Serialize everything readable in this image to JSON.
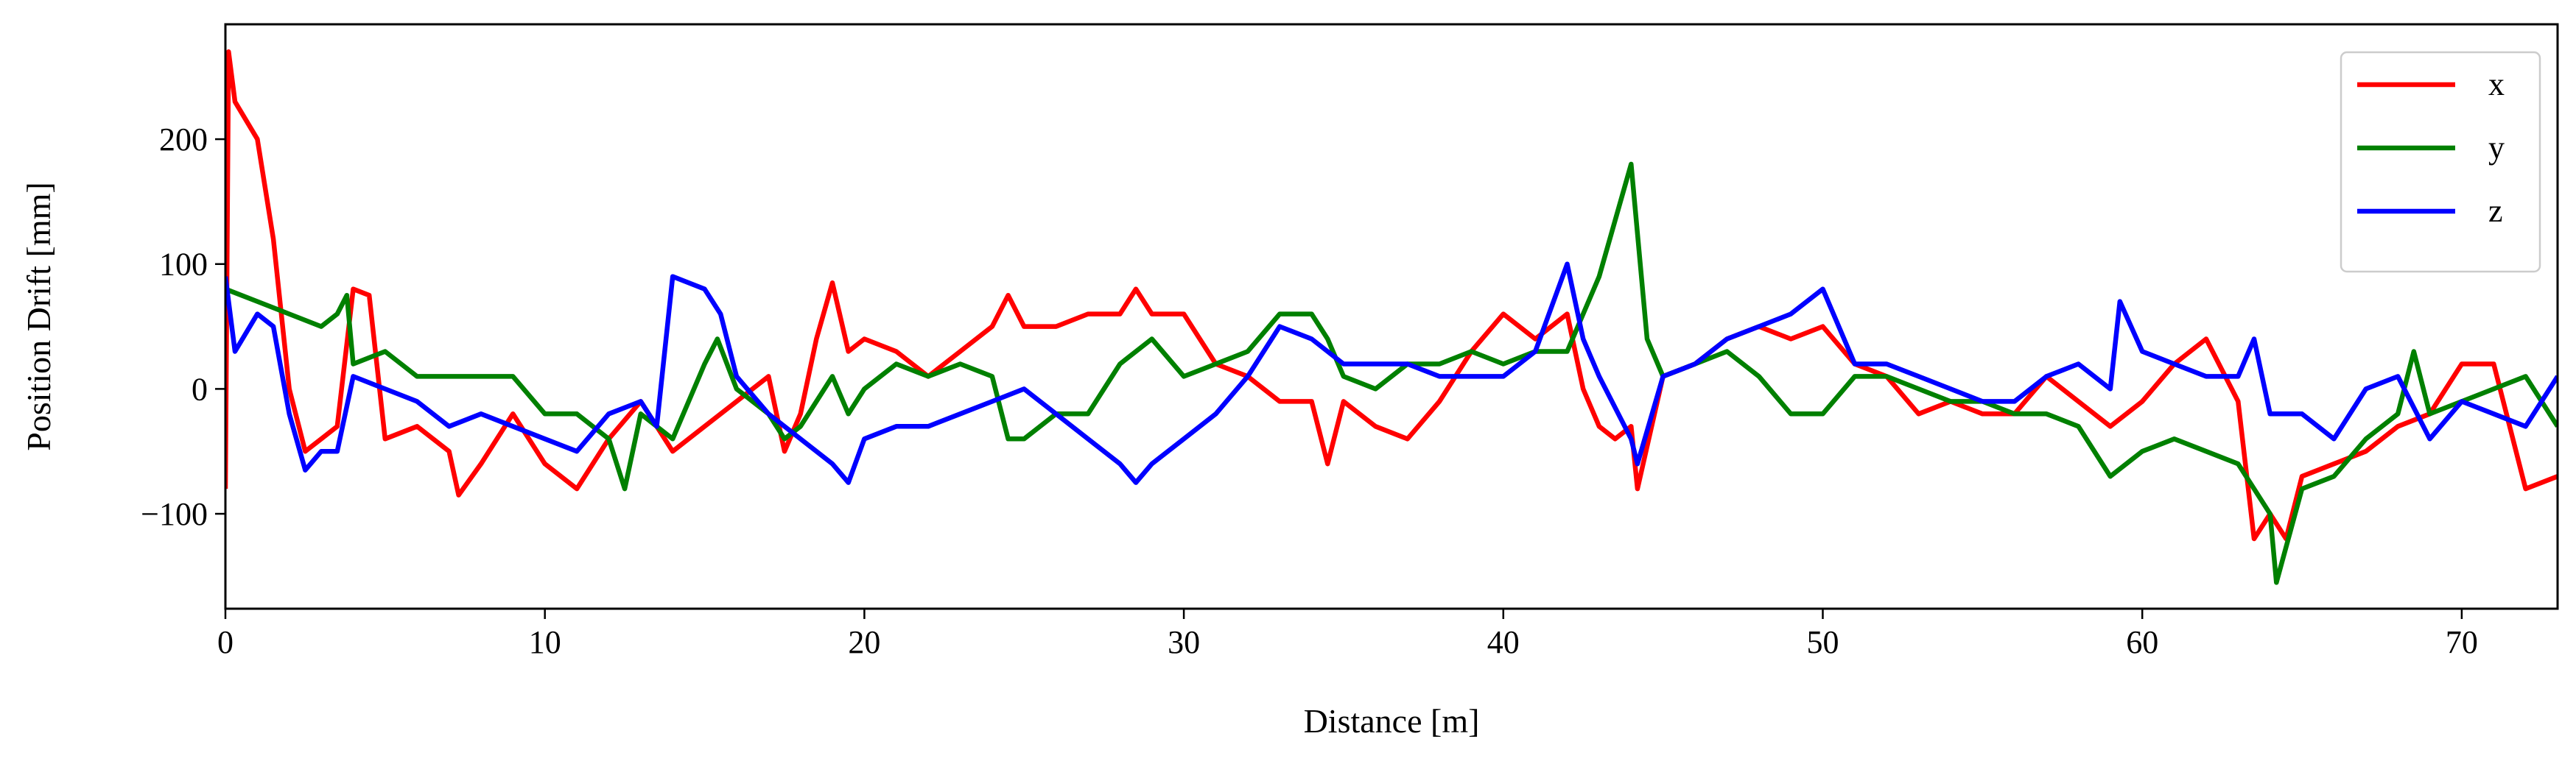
{
  "chart_data": {
    "type": "line",
    "x_label": "Distance [m]",
    "y_label": "Position Drift [mm]",
    "xlim": [
      0,
      73
    ],
    "ylim": [
      -176,
      292
    ],
    "xticks": [
      0,
      10,
      20,
      30,
      40,
      50,
      60,
      70
    ],
    "yticks": [
      {
        "value": -100,
        "label": "−100"
      },
      0,
      100,
      200
    ],
    "grid": false,
    "legend": "upper right",
    "series": [
      {
        "name": "x",
        "color": "#ff0000",
        "x": [
          0,
          0.1,
          0.3,
          1,
          1.5,
          2,
          2.5,
          3,
          3.5,
          4,
          4.5,
          5,
          6,
          7,
          7.3,
          8,
          9,
          10,
          11,
          12,
          13,
          14,
          15,
          16,
          17,
          17.5,
          18,
          18.5,
          19,
          19.5,
          20,
          21,
          22,
          23,
          24,
          24.5,
          25,
          26,
          27,
          28,
          28.5,
          29,
          30,
          31,
          32,
          33,
          34,
          34.5,
          35,
          36,
          37,
          38,
          39,
          40,
          41,
          42,
          42.5,
          43,
          43.5,
          44,
          44.2,
          45,
          46,
          47,
          48,
          49,
          50,
          51,
          52,
          53,
          54,
          55,
          56,
          57,
          58,
          59,
          60,
          61,
          62,
          63,
          63.5,
          64,
          64.5,
          65,
          66,
          67,
          68,
          69,
          70,
          71,
          72,
          73
        ],
        "values": [
          -80,
          270,
          230,
          200,
          120,
          0,
          -50,
          -40,
          -30,
          80,
          75,
          -40,
          -30,
          -50,
          -85,
          -60,
          -20,
          -60,
          -80,
          -40,
          -10,
          -50,
          -30,
          -10,
          10,
          -50,
          -20,
          40,
          85,
          30,
          40,
          30,
          10,
          30,
          50,
          75,
          50,
          50,
          60,
          60,
          80,
          60,
          60,
          20,
          10,
          -10,
          -10,
          -60,
          -10,
          -30,
          -40,
          -10,
          30,
          60,
          40,
          60,
          0,
          -30,
          -40,
          -30,
          -80,
          10,
          20,
          40,
          50,
          40,
          50,
          20,
          10,
          -20,
          -10,
          -20,
          -20,
          10,
          -10,
          -30,
          -10,
          20,
          40,
          -10,
          -120,
          -100,
          -120,
          -70,
          -60,
          -50,
          -30,
          -20,
          20,
          20,
          -80,
          -70
        ]
      },
      {
        "name": "y",
        "color": "#008000",
        "x": [
          0,
          1,
          2,
          3,
          3.5,
          3.8,
          4,
          5,
          6,
          7,
          8,
          9,
          10,
          11,
          12,
          12.5,
          13,
          14,
          15,
          15.4,
          16,
          17,
          17.5,
          18,
          19,
          19.5,
          20,
          21,
          22,
          23,
          24,
          24.5,
          25,
          26,
          27,
          28,
          29,
          30,
          31,
          32,
          33,
          34,
          34.5,
          35,
          36,
          37,
          38,
          39,
          40,
          41,
          42,
          43,
          44,
          44.5,
          45,
          46,
          47,
          48,
          49,
          50,
          51,
          52,
          53,
          54,
          55,
          56,
          57,
          58,
          59,
          60,
          61,
          62,
          63,
          64,
          64.2,
          65,
          66,
          67,
          68,
          68.5,
          69,
          70,
          71,
          72,
          73
        ],
        "values": [
          80,
          70,
          60,
          50,
          60,
          75,
          20,
          30,
          10,
          10,
          10,
          10,
          -20,
          -20,
          -40,
          -80,
          -20,
          -40,
          20,
          40,
          0,
          -20,
          -40,
          -30,
          10,
          -20,
          0,
          20,
          10,
          20,
          10,
          -40,
          -40,
          -20,
          -20,
          20,
          40,
          10,
          20,
          30,
          60,
          60,
          40,
          10,
          0,
          20,
          20,
          30,
          20,
          30,
          30,
          90,
          180,
          40,
          10,
          20,
          30,
          10,
          -20,
          -20,
          10,
          10,
          0,
          -10,
          -10,
          -20,
          -20,
          -30,
          -70,
          -50,
          -40,
          -50,
          -60,
          -100,
          -155,
          -80,
          -70,
          -40,
          -20,
          30,
          -20,
          -10,
          0,
          10,
          -30
        ]
      },
      {
        "name": "z",
        "color": "#0000ff",
        "x": [
          0,
          0.3,
          1,
          1.5,
          2,
          2.5,
          3,
          3.5,
          4,
          5,
          6,
          7,
          8,
          9,
          10,
          11,
          12,
          13,
          13.5,
          14,
          15,
          15.5,
          16,
          17,
          18,
          19,
          19.5,
          20,
          21,
          22,
          23,
          24,
          25,
          26,
          27,
          28,
          28.5,
          29,
          30,
          31,
          32,
          33,
          34,
          35,
          36,
          37,
          38,
          39,
          40,
          41,
          42,
          42.5,
          43,
          44,
          44.2,
          45,
          46,
          47,
          48,
          49,
          50,
          51,
          52,
          53,
          54,
          55,
          56,
          57,
          58,
          59,
          59.3,
          60,
          61,
          62,
          63,
          63.5,
          64,
          65,
          66,
          67,
          68,
          69,
          70,
          71,
          72,
          73
        ],
        "values": [
          90,
          30,
          60,
          50,
          -20,
          -65,
          -50,
          -50,
          10,
          0,
          -10,
          -30,
          -20,
          -30,
          -40,
          -50,
          -20,
          -10,
          -30,
          90,
          80,
          60,
          10,
          -20,
          -40,
          -60,
          -75,
          -40,
          -30,
          -30,
          -20,
          -10,
          0,
          -20,
          -40,
          -60,
          -75,
          -60,
          -40,
          -20,
          10,
          50,
          40,
          20,
          20,
          20,
          10,
          10,
          10,
          30,
          100,
          40,
          10,
          -40,
          -60,
          10,
          20,
          40,
          50,
          60,
          80,
          20,
          20,
          10,
          0,
          -10,
          -10,
          10,
          20,
          0,
          70,
          30,
          20,
          10,
          10,
          40,
          -20,
          -20,
          -40,
          0,
          10,
          -40,
          -10,
          -20,
          -30,
          10
        ]
      }
    ]
  }
}
